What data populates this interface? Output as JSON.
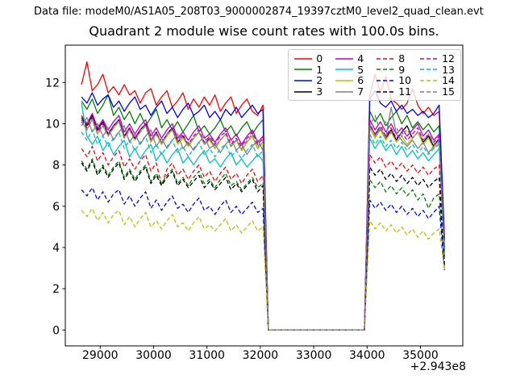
{
  "header": {
    "data_file_label": "Data file: modeM0/AS1A05_208T03_9000002874_19397cztM0_level2_quad_clean.evt"
  },
  "chart_data": {
    "type": "line",
    "title": "Quadrant 2 module wise count rates with 100.0s bins.",
    "xlabel": "",
    "ylabel": "",
    "x_offset_label": "+2.943e8",
    "bin_size_label": "100.0s",
    "xticks": [
      29000,
      30000,
      31000,
      32000,
      33000,
      34000,
      35000
    ],
    "yticks": [
      0,
      2,
      4,
      6,
      8,
      10,
      12
    ],
    "xlim": [
      28346,
      35793
    ],
    "ylim": [
      -0.65,
      13.8
    ],
    "grid": false,
    "legend_position": "upper right",
    "legend_columns": 4,
    "x": [
      28650,
      28750,
      28850,
      28950,
      29050,
      29150,
      29250,
      29350,
      29450,
      29550,
      29650,
      29750,
      29850,
      29950,
      30050,
      30150,
      30250,
      30350,
      30450,
      30550,
      30650,
      30750,
      30850,
      30950,
      31050,
      31150,
      31250,
      31350,
      31450,
      31550,
      31650,
      31750,
      31850,
      31950,
      32050,
      32150,
      33950,
      34050,
      34150,
      34250,
      34350,
      34450,
      34550,
      34650,
      34750,
      34850,
      34950,
      35050,
      35150,
      35250,
      35350,
      35450
    ],
    "series": [
      {
        "name": "0",
        "color": "#ff0000",
        "style": "solid",
        "values": [
          11.9,
          13.0,
          11.6,
          11.9,
          12.4,
          11.5,
          11.8,
          11.4,
          11.9,
          11.4,
          11.6,
          11.0,
          11.5,
          11.7,
          10.9,
          11.3,
          11.6,
          10.8,
          11.1,
          11.5,
          10.7,
          11.2,
          10.8,
          11.3,
          10.9,
          11.4,
          10.6,
          11.0,
          11.3,
          10.5,
          10.9,
          11.2,
          10.6,
          10.4,
          10.9,
          0,
          0,
          11.4,
          12.4,
          11.5,
          12.3,
          11.2,
          11.0,
          10.7,
          11.0,
          11.7,
          10.9,
          10.5,
          10.8,
          10.4,
          10.6,
          4.3
        ]
      },
      {
        "name": "1",
        "color": "#008000",
        "style": "solid",
        "values": [
          11.1,
          10.7,
          11.2,
          10.5,
          10.9,
          11.4,
          10.4,
          10.8,
          10.2,
          10.6,
          10.0,
          10.5,
          9.9,
          10.3,
          10.7,
          9.8,
          10.2,
          9.7,
          10.1,
          9.6,
          10.0,
          10.4,
          9.6,
          9.9,
          9.5,
          9.8,
          10.2,
          9.6,
          9.9,
          9.4,
          9.8,
          10.1,
          9.5,
          9.9,
          10.2,
          0,
          0,
          10.6,
          10.1,
          10.5,
          9.9,
          10.3,
          10.6,
          10.0,
          10.4,
          9.8,
          10.1,
          9.7,
          10.0,
          9.6,
          9.9,
          4.0
        ]
      },
      {
        "name": "2",
        "color": "#0000ff",
        "style": "solid",
        "values": [
          11.3,
          11.0,
          11.5,
          10.9,
          11.2,
          11.4,
          10.8,
          11.1,
          10.6,
          11.0,
          11.3,
          10.7,
          10.9,
          10.4,
          10.8,
          11.1,
          10.5,
          10.8,
          10.3,
          10.7,
          11.0,
          10.4,
          10.6,
          10.9,
          10.3,
          10.6,
          10.2,
          10.7,
          10.4,
          10.8,
          10.3,
          10.6,
          10.9,
          10.5,
          10.7,
          0,
          0,
          11.2,
          11.6,
          11.0,
          10.8,
          11.1,
          10.6,
          10.9,
          10.5,
          10.7,
          10.4,
          10.6,
          10.3,
          10.5,
          10.9,
          4.4
        ]
      },
      {
        "name": "3",
        "color": "#000000",
        "style": "solid",
        "values": [
          10.3,
          9.9,
          10.4,
          9.7,
          10.1,
          9.5,
          9.9,
          10.2,
          9.4,
          9.8,
          9.3,
          9.7,
          10.0,
          9.2,
          9.6,
          9.0,
          9.5,
          9.8,
          9.1,
          9.4,
          8.9,
          9.3,
          9.6,
          9.0,
          9.3,
          8.8,
          9.2,
          9.5,
          8.9,
          9.2,
          8.7,
          9.1,
          9.4,
          8.8,
          9.1,
          0,
          0,
          9.9,
          9.5,
          9.8,
          9.3,
          9.7,
          9.2,
          9.6,
          9.9,
          9.3,
          9.6,
          9.1,
          9.4,
          8.9,
          9.3,
          3.9
        ]
      },
      {
        "name": "4",
        "color": "#bf00bf",
        "style": "solid",
        "values": [
          10.4,
          10.0,
          10.5,
          9.8,
          10.2,
          9.7,
          10.1,
          10.4,
          9.6,
          10.0,
          9.5,
          9.9,
          10.2,
          9.4,
          9.8,
          9.3,
          9.7,
          10.0,
          9.3,
          9.6,
          9.2,
          9.6,
          9.9,
          9.3,
          9.5,
          9.1,
          9.5,
          9.8,
          9.2,
          9.5,
          9.0,
          9.4,
          9.7,
          9.1,
          9.4,
          0,
          0,
          10.2,
          9.7,
          10.1,
          9.6,
          10.0,
          9.5,
          9.8,
          9.4,
          9.7,
          10.0,
          9.4,
          9.7,
          9.2,
          9.5,
          3.8
        ]
      },
      {
        "name": "5",
        "color": "#00bfbf",
        "style": "solid",
        "values": [
          11.0,
          9.4,
          9.0,
          9.4,
          8.7,
          9.1,
          8.5,
          8.9,
          9.2,
          8.4,
          8.8,
          8.3,
          8.7,
          9.0,
          8.2,
          8.6,
          8.1,
          8.5,
          8.8,
          8.1,
          8.4,
          8.0,
          8.4,
          8.7,
          8.1,
          8.3,
          7.9,
          8.3,
          8.6,
          8.0,
          8.3,
          7.9,
          8.2,
          8.5,
          8.2,
          0,
          0,
          9.3,
          8.8,
          9.2,
          8.7,
          9.0,
          8.5,
          8.9,
          8.4,
          8.7,
          8.3,
          8.6,
          8.2,
          8.5,
          8.8,
          3.6
        ]
      },
      {
        "name": "6",
        "color": "#bfbf00",
        "style": "solid",
        "values": [
          10.1,
          9.7,
          10.2,
          9.5,
          9.9,
          9.4,
          9.8,
          10.1,
          9.3,
          9.7,
          9.2,
          9.6,
          9.9,
          9.1,
          9.5,
          9.0,
          9.4,
          9.7,
          9.0,
          9.3,
          8.9,
          9.3,
          9.6,
          9.0,
          9.2,
          8.8,
          9.2,
          9.5,
          8.9,
          9.2,
          8.7,
          9.1,
          9.4,
          8.8,
          9.1,
          0,
          0,
          9.8,
          9.3,
          9.7,
          9.2,
          9.6,
          9.1,
          9.4,
          9.0,
          9.3,
          9.6,
          9.0,
          9.3,
          8.8,
          9.1,
          3.7
        ]
      },
      {
        "name": "7",
        "color": "#7f7f7f",
        "style": "solid",
        "values": [
          9.9,
          10.3,
          9.6,
          10.0,
          9.4,
          9.8,
          9.2,
          9.6,
          9.9,
          9.1,
          9.5,
          9.0,
          9.4,
          9.7,
          8.9,
          9.3,
          8.8,
          9.2,
          9.5,
          8.8,
          9.1,
          8.7,
          9.1,
          9.4,
          8.8,
          9.0,
          8.6,
          9.0,
          9.3,
          8.7,
          9.0,
          8.5,
          8.9,
          9.2,
          8.7,
          0,
          0,
          10.0,
          9.4,
          9.8,
          9.3,
          10.8,
          9.5,
          9.2,
          8.9,
          9.2,
          8.8,
          9.1,
          8.6,
          8.9,
          9.2,
          3.6
        ]
      },
      {
        "name": "8",
        "color": "#ff0000",
        "style": "dashed",
        "values": [
          8.8,
          8.4,
          8.9,
          8.2,
          8.6,
          8.0,
          8.4,
          8.7,
          7.9,
          8.3,
          7.8,
          8.2,
          8.5,
          7.7,
          8.1,
          7.0,
          7.8,
          8.1,
          7.5,
          7.8,
          7.3,
          7.7,
          8.0,
          7.4,
          7.7,
          7.2,
          7.6,
          7.9,
          7.3,
          7.6,
          7.1,
          7.5,
          7.8,
          7.2,
          7.5,
          0,
          0,
          8.5,
          8.1,
          8.4,
          7.9,
          8.2,
          7.8,
          8.1,
          7.7,
          8.0,
          7.6,
          7.9,
          7.5,
          7.8,
          8.0,
          3.3
        ]
      },
      {
        "name": "9",
        "color": "#008000",
        "style": "dashed",
        "values": [
          8.2,
          7.8,
          8.3,
          7.6,
          8.0,
          7.5,
          7.9,
          8.2,
          7.4,
          7.8,
          7.3,
          7.7,
          8.0,
          7.2,
          7.6,
          7.1,
          7.5,
          7.8,
          7.1,
          7.4,
          7.0,
          7.4,
          7.7,
          7.1,
          7.3,
          6.9,
          7.3,
          7.6,
          7.0,
          7.2,
          6.8,
          7.1,
          7.4,
          6.9,
          7.1,
          0,
          0,
          7.3,
          6.9,
          7.2,
          6.7,
          7.0,
          6.6,
          6.9,
          6.5,
          6.8,
          6.3,
          6.6,
          5.9,
          6.4,
          6.6,
          3.0
        ]
      },
      {
        "name": "10",
        "color": "#0000ff",
        "style": "dashed",
        "values": [
          6.8,
          6.5,
          6.9,
          6.3,
          6.7,
          6.2,
          6.6,
          6.8,
          6.1,
          6.5,
          6.0,
          6.4,
          6.7,
          5.9,
          6.3,
          5.8,
          6.2,
          6.5,
          5.9,
          6.1,
          5.7,
          6.1,
          6.4,
          5.8,
          6.0,
          5.6,
          6.0,
          6.3,
          5.7,
          6.0,
          5.6,
          5.9,
          6.2,
          5.7,
          5.9,
          0,
          0,
          6.3,
          5.9,
          6.2,
          5.8,
          6.1,
          5.7,
          6.0,
          5.6,
          5.9,
          5.5,
          5.8,
          5.4,
          5.7,
          6.0,
          2.9
        ]
      },
      {
        "name": "11",
        "color": "#000000",
        "style": "dashed",
        "values": [
          8.1,
          7.7,
          8.2,
          7.5,
          7.9,
          7.4,
          7.8,
          8.1,
          7.3,
          7.7,
          7.2,
          7.6,
          7.9,
          7.1,
          7.5,
          7.0,
          7.4,
          7.7,
          7.0,
          7.3,
          6.9,
          7.2,
          7.5,
          6.9,
          7.2,
          6.8,
          7.1,
          7.4,
          6.8,
          7.1,
          6.7,
          7.0,
          7.3,
          6.7,
          7.0,
          0,
          0,
          7.9,
          7.5,
          7.8,
          7.3,
          7.6,
          7.2,
          7.5,
          7.1,
          7.4,
          7.0,
          7.3,
          6.9,
          7.2,
          7.4,
          3.1
        ]
      },
      {
        "name": "12",
        "color": "#bf00bf",
        "style": "dashed",
        "values": [
          10.2,
          9.8,
          10.3,
          9.6,
          10.0,
          9.5,
          9.9,
          10.2,
          9.4,
          9.8,
          9.3,
          9.7,
          10.0,
          9.2,
          9.6,
          9.1,
          9.5,
          9.8,
          9.2,
          9.5,
          9.0,
          9.4,
          9.7,
          9.1,
          9.4,
          9.0,
          9.4,
          9.6,
          9.0,
          9.3,
          8.9,
          9.3,
          9.6,
          9.0,
          9.3,
          0,
          0,
          10.0,
          9.5,
          9.9,
          9.4,
          9.8,
          9.3,
          9.6,
          9.2,
          9.5,
          9.8,
          9.2,
          9.5,
          9.1,
          9.4,
          3.8
        ]
      },
      {
        "name": "13",
        "color": "#00bfbf",
        "style": "dashed",
        "values": [
          9.6,
          9.2,
          9.7,
          9.0,
          9.4,
          8.9,
          9.3,
          9.6,
          8.8,
          9.2,
          8.7,
          9.1,
          9.4,
          8.6,
          9.0,
          8.5,
          8.9,
          9.2,
          8.6,
          8.9,
          8.4,
          8.8,
          9.1,
          8.5,
          8.8,
          8.4,
          8.8,
          9.0,
          8.4,
          8.7,
          8.3,
          8.7,
          9.0,
          8.4,
          8.7,
          0,
          0,
          9.5,
          9.0,
          9.4,
          8.9,
          9.2,
          8.8,
          9.1,
          8.7,
          9.0,
          8.6,
          8.9,
          8.5,
          8.8,
          9.0,
          3.5
        ]
      },
      {
        "name": "14",
        "color": "#bfbf00",
        "style": "dashed",
        "values": [
          5.8,
          5.5,
          5.9,
          5.3,
          5.7,
          5.2,
          5.6,
          5.8,
          5.1,
          5.5,
          5.0,
          5.4,
          5.7,
          5.0,
          5.3,
          4.9,
          5.3,
          5.6,
          5.0,
          5.2,
          4.8,
          5.2,
          5.5,
          4.9,
          5.1,
          4.8,
          5.1,
          5.4,
          4.8,
          5.1,
          4.7,
          5.0,
          5.3,
          4.8,
          5.0,
          0,
          0,
          5.3,
          4.9,
          5.2,
          4.8,
          5.1,
          4.7,
          5.0,
          4.6,
          4.9,
          4.5,
          4.8,
          4.4,
          4.7,
          4.9,
          2.9
        ]
      },
      {
        "name": "15",
        "color": "#7f7f7f",
        "style": "dashed",
        "values": [
          10.1,
          9.7,
          10.2,
          9.5,
          9.9,
          9.4,
          9.8,
          10.1,
          9.3,
          9.7,
          9.2,
          9.6,
          9.9,
          9.2,
          9.5,
          9.1,
          9.5,
          9.7,
          9.1,
          9.4,
          9.0,
          9.3,
          9.6,
          9.0,
          9.3,
          8.9,
          9.2,
          9.5,
          8.9,
          9.2,
          8.8,
          9.2,
          9.5,
          8.9,
          9.2,
          0,
          0,
          9.9,
          10.4,
          9.6,
          10.1,
          9.5,
          9.8,
          9.4,
          9.7,
          9.3,
          9.6,
          9.2,
          9.5,
          9.0,
          9.3,
          3.7
        ]
      }
    ]
  }
}
